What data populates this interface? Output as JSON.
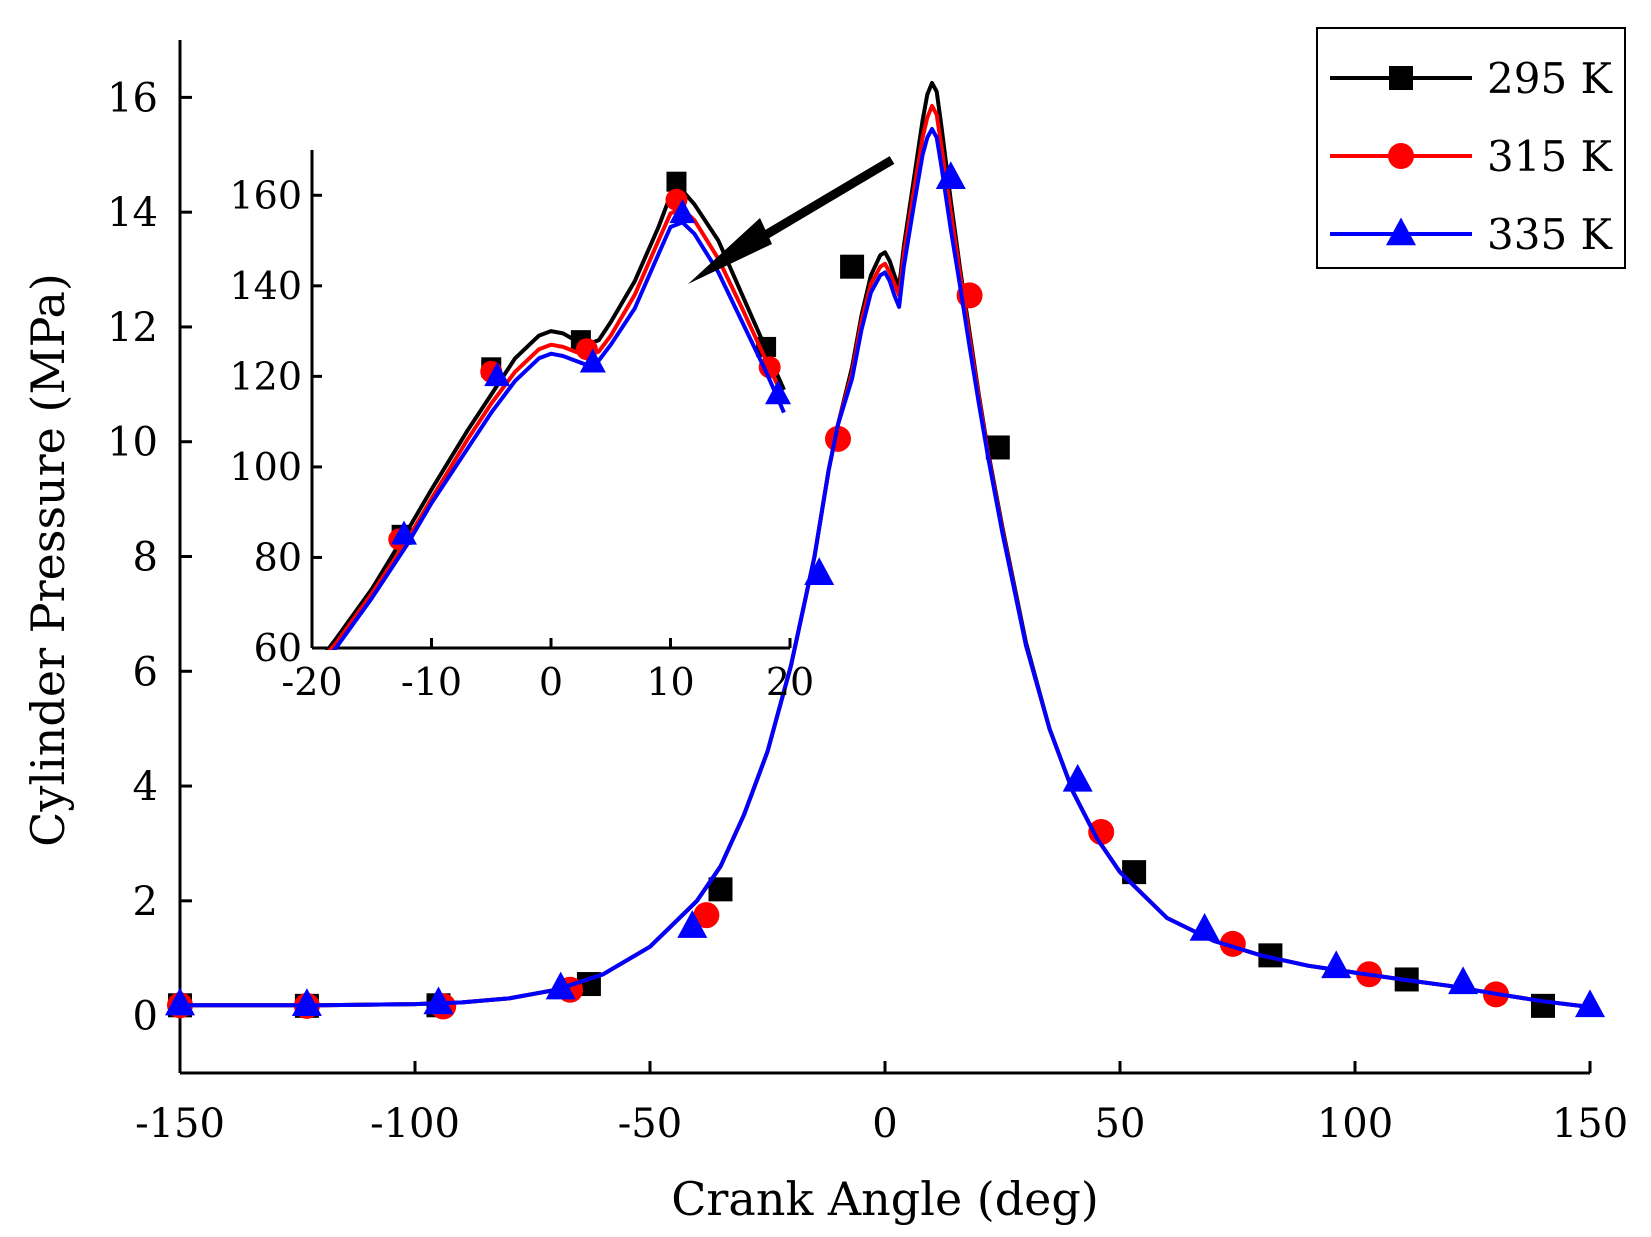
{
  "chart_data": {
    "type": "line",
    "xlabel": "Crank Angle (deg)",
    "ylabel": "Cylinder Pressure (MPa)",
    "xlim": [
      -150,
      150
    ],
    "ylim": [
      -1,
      17
    ],
    "x_ticks": [
      "-150",
      "-100",
      "-50",
      "0",
      "50",
      "100",
      "150"
    ],
    "y_ticks": [
      "0",
      "2",
      "4",
      "6",
      "8",
      "10",
      "12",
      "14",
      "16"
    ],
    "legend_position": "top-right",
    "series": [
      {
        "name": "295 K",
        "color": "#000000",
        "marker": "square",
        "curve": [
          [
            -150,
            0.18
          ],
          [
            -120,
            0.18
          ],
          [
            -100,
            0.2
          ],
          [
            -90,
            0.23
          ],
          [
            -80,
            0.3
          ],
          [
            -70,
            0.45
          ],
          [
            -60,
            0.72
          ],
          [
            -50,
            1.2
          ],
          [
            -45,
            1.6
          ],
          [
            -40,
            2.0
          ],
          [
            -35,
            2.6
          ],
          [
            -30,
            3.5
          ],
          [
            -25,
            4.6
          ],
          [
            -20,
            6.1
          ],
          [
            -15,
            8.0
          ],
          [
            -12,
            9.5
          ],
          [
            -10,
            10.3
          ],
          [
            -7,
            11.3
          ],
          [
            -5,
            12.2
          ],
          [
            -3,
            12.9
          ],
          [
            -1,
            13.25
          ],
          [
            0,
            13.3
          ],
          [
            1,
            13.15
          ],
          [
            2,
            12.9
          ],
          [
            3,
            12.7
          ],
          [
            4,
            13.4
          ],
          [
            6,
            14.5
          ],
          [
            8,
            15.6
          ],
          [
            9,
            16.05
          ],
          [
            10,
            16.25
          ],
          [
            11,
            16.1
          ],
          [
            12,
            15.5
          ],
          [
            14,
            14.2
          ],
          [
            16,
            13.0
          ],
          [
            18,
            11.9
          ],
          [
            20,
            10.8
          ],
          [
            22,
            9.8
          ],
          [
            25,
            8.5
          ],
          [
            30,
            6.5
          ],
          [
            35,
            5.0
          ],
          [
            40,
            3.9
          ],
          [
            45,
            3.1
          ],
          [
            50,
            2.5
          ],
          [
            60,
            1.7
          ],
          [
            70,
            1.3
          ],
          [
            80,
            1.05
          ],
          [
            90,
            0.87
          ],
          [
            100,
            0.75
          ],
          [
            110,
            0.63
          ],
          [
            120,
            0.52
          ],
          [
            130,
            0.38
          ],
          [
            140,
            0.25
          ],
          [
            150,
            0.15
          ]
        ],
        "markers": [
          [
            -150,
            0.18
          ],
          [
            -123,
            0.17
          ],
          [
            -95,
            0.18
          ],
          [
            -63,
            0.55
          ],
          [
            -35,
            2.2
          ],
          [
            -7,
            13.05
          ],
          [
            24,
            9.9
          ],
          [
            53,
            2.5
          ],
          [
            82,
            1.05
          ],
          [
            111,
            0.63
          ],
          [
            140,
            0.17
          ]
        ],
        "inset_curve": [
          [
            -20,
            55
          ],
          [
            -18,
            62
          ],
          [
            -15,
            73
          ],
          [
            -12,
            86
          ],
          [
            -10,
            95
          ],
          [
            -7,
            108
          ],
          [
            -5,
            116
          ],
          [
            -3,
            124
          ],
          [
            -1,
            129
          ],
          [
            0,
            130
          ],
          [
            1,
            129.5
          ],
          [
            2,
            128
          ],
          [
            3,
            127
          ],
          [
            4,
            128
          ],
          [
            5,
            132
          ],
          [
            7,
            141
          ],
          [
            9,
            153
          ],
          [
            10,
            160
          ],
          [
            11,
            161
          ],
          [
            12,
            158
          ],
          [
            14,
            150
          ],
          [
            16,
            138
          ],
          [
            18,
            126
          ],
          [
            19.5,
            117
          ]
        ],
        "inset_markers": [
          [
            -12.5,
            85
          ],
          [
            -5,
            122
          ],
          [
            2.5,
            128
          ],
          [
            10.5,
            163
          ],
          [
            18,
            126.5
          ]
        ]
      },
      {
        "name": "315 K",
        "color": "#ff0000",
        "marker": "circle",
        "curve": [
          [
            -150,
            0.18
          ],
          [
            -120,
            0.18
          ],
          [
            -100,
            0.2
          ],
          [
            -90,
            0.23
          ],
          [
            -80,
            0.3
          ],
          [
            -70,
            0.45
          ],
          [
            -60,
            0.72
          ],
          [
            -50,
            1.2
          ],
          [
            -45,
            1.6
          ],
          [
            -40,
            2.0
          ],
          [
            -35,
            2.6
          ],
          [
            -30,
            3.5
          ],
          [
            -25,
            4.6
          ],
          [
            -20,
            6.1
          ],
          [
            -15,
            8.0
          ],
          [
            -12,
            9.5
          ],
          [
            -10,
            10.3
          ],
          [
            -7,
            11.2
          ],
          [
            -5,
            12.1
          ],
          [
            -3,
            12.75
          ],
          [
            -1,
            13.05
          ],
          [
            0,
            13.1
          ],
          [
            1,
            12.95
          ],
          [
            2,
            12.75
          ],
          [
            3,
            12.55
          ],
          [
            4,
            13.25
          ],
          [
            6,
            14.3
          ],
          [
            8,
            15.3
          ],
          [
            9,
            15.65
          ],
          [
            10,
            15.85
          ],
          [
            11,
            15.7
          ],
          [
            12,
            15.15
          ],
          [
            14,
            14.0
          ],
          [
            16,
            12.9
          ],
          [
            18,
            11.8
          ],
          [
            20,
            10.75
          ],
          [
            22,
            9.75
          ],
          [
            25,
            8.45
          ],
          [
            30,
            6.45
          ],
          [
            35,
            5.0
          ],
          [
            40,
            3.9
          ],
          [
            45,
            3.1
          ],
          [
            50,
            2.5
          ],
          [
            60,
            1.7
          ],
          [
            70,
            1.3
          ],
          [
            80,
            1.05
          ],
          [
            90,
            0.87
          ],
          [
            100,
            0.75
          ],
          [
            110,
            0.63
          ],
          [
            120,
            0.52
          ],
          [
            130,
            0.38
          ],
          [
            140,
            0.25
          ],
          [
            150,
            0.15
          ]
        ],
        "markers": [
          [
            -150,
            0.18
          ],
          [
            -123,
            0.17
          ],
          [
            -94,
            0.16
          ],
          [
            -67,
            0.45
          ],
          [
            -38,
            1.75
          ],
          [
            -10,
            10.05
          ],
          [
            18,
            12.55
          ],
          [
            46,
            3.2
          ],
          [
            74,
            1.25
          ],
          [
            103,
            0.72
          ],
          [
            130,
            0.37
          ]
        ],
        "inset_curve": [
          [
            -20,
            55
          ],
          [
            -18,
            61
          ],
          [
            -15,
            72
          ],
          [
            -12,
            84
          ],
          [
            -10,
            93
          ],
          [
            -7,
            106
          ],
          [
            -5,
            114
          ],
          [
            -3,
            121
          ],
          [
            -1,
            126
          ],
          [
            0,
            127
          ],
          [
            1,
            126.5
          ],
          [
            2,
            125.5
          ],
          [
            3,
            124.5
          ],
          [
            4,
            125.5
          ],
          [
            5,
            129
          ],
          [
            7,
            138
          ],
          [
            9,
            150
          ],
          [
            10,
            156
          ],
          [
            11,
            157
          ],
          [
            12,
            154.5
          ],
          [
            14,
            146
          ],
          [
            16,
            135
          ],
          [
            18,
            123.5
          ],
          [
            19.5,
            115
          ]
        ],
        "inset_markers": [
          [
            -12.7,
            84
          ],
          [
            -5,
            121
          ],
          [
            3,
            126
          ],
          [
            10.5,
            159
          ],
          [
            18.3,
            122
          ]
        ]
      },
      {
        "name": "335 K",
        "color": "#0000ff",
        "marker": "triangle",
        "curve": [
          [
            -150,
            0.18
          ],
          [
            -120,
            0.18
          ],
          [
            -100,
            0.2
          ],
          [
            -90,
            0.23
          ],
          [
            -80,
            0.3
          ],
          [
            -70,
            0.45
          ],
          [
            -60,
            0.72
          ],
          [
            -50,
            1.2
          ],
          [
            -45,
            1.6
          ],
          [
            -40,
            2.0
          ],
          [
            -35,
            2.6
          ],
          [
            -30,
            3.5
          ],
          [
            -25,
            4.6
          ],
          [
            -20,
            6.1
          ],
          [
            -15,
            8.0
          ],
          [
            -12,
            9.5
          ],
          [
            -10,
            10.3
          ],
          [
            -7,
            11.1
          ],
          [
            -5,
            11.95
          ],
          [
            -3,
            12.6
          ],
          [
            -1,
            12.9
          ],
          [
            0,
            12.95
          ],
          [
            1,
            12.8
          ],
          [
            2,
            12.55
          ],
          [
            3,
            12.35
          ],
          [
            4,
            13.05
          ],
          [
            6,
            14.05
          ],
          [
            8,
            15.0
          ],
          [
            9,
            15.3
          ],
          [
            10,
            15.45
          ],
          [
            11,
            15.3
          ],
          [
            12,
            14.8
          ],
          [
            14,
            13.7
          ],
          [
            16,
            12.7
          ],
          [
            18,
            11.65
          ],
          [
            20,
            10.65
          ],
          [
            22,
            9.7
          ],
          [
            25,
            8.4
          ],
          [
            30,
            6.45
          ],
          [
            35,
            5.0
          ],
          [
            40,
            3.9
          ],
          [
            45,
            3.1
          ],
          [
            50,
            2.5
          ],
          [
            60,
            1.7
          ],
          [
            70,
            1.3
          ],
          [
            80,
            1.05
          ],
          [
            90,
            0.87
          ],
          [
            100,
            0.75
          ],
          [
            110,
            0.63
          ],
          [
            120,
            0.52
          ],
          [
            130,
            0.38
          ],
          [
            140,
            0.25
          ],
          [
            150,
            0.15
          ]
        ],
        "markers": [
          [
            -150,
            0.2
          ],
          [
            -123,
            0.19
          ],
          [
            -95,
            0.22
          ],
          [
            -69,
            0.48
          ],
          [
            -41,
            1.55
          ],
          [
            -14,
            7.7
          ],
          [
            14,
            14.6
          ],
          [
            41,
            4.1
          ],
          [
            68,
            1.5
          ],
          [
            96,
            0.85
          ],
          [
            123,
            0.57
          ],
          [
            150,
            0.17
          ]
        ],
        "inset_curve": [
          [
            -20,
            54
          ],
          [
            -18,
            60
          ],
          [
            -15,
            71
          ],
          [
            -12,
            83
          ],
          [
            -10,
            92
          ],
          [
            -7,
            104
          ],
          [
            -5,
            112
          ],
          [
            -3,
            119
          ],
          [
            -1,
            124
          ],
          [
            0,
            125
          ],
          [
            1,
            124.5
          ],
          [
            2,
            123.5
          ],
          [
            3,
            122.5
          ],
          [
            4,
            123.5
          ],
          [
            5,
            127
          ],
          [
            7,
            135
          ],
          [
            9,
            147
          ],
          [
            10,
            153
          ],
          [
            11,
            154
          ],
          [
            12,
            151.5
          ],
          [
            14,
            143
          ],
          [
            16,
            132
          ],
          [
            18,
            121
          ],
          [
            19.5,
            112
          ]
        ],
        "inset_markers": [
          [
            -12.3,
            85
          ],
          [
            -4.5,
            120
          ],
          [
            3.5,
            123
          ],
          [
            11,
            156
          ],
          [
            19,
            116
          ]
        ]
      }
    ],
    "inset": {
      "xlim": [
        -20,
        20
      ],
      "ylim": [
        60,
        170
      ],
      "x_ticks": [
        "-20",
        "-10",
        "0",
        "10",
        "20"
      ],
      "y_ticks": [
        "60",
        "80",
        "100",
        "120",
        "140",
        "160"
      ]
    }
  }
}
